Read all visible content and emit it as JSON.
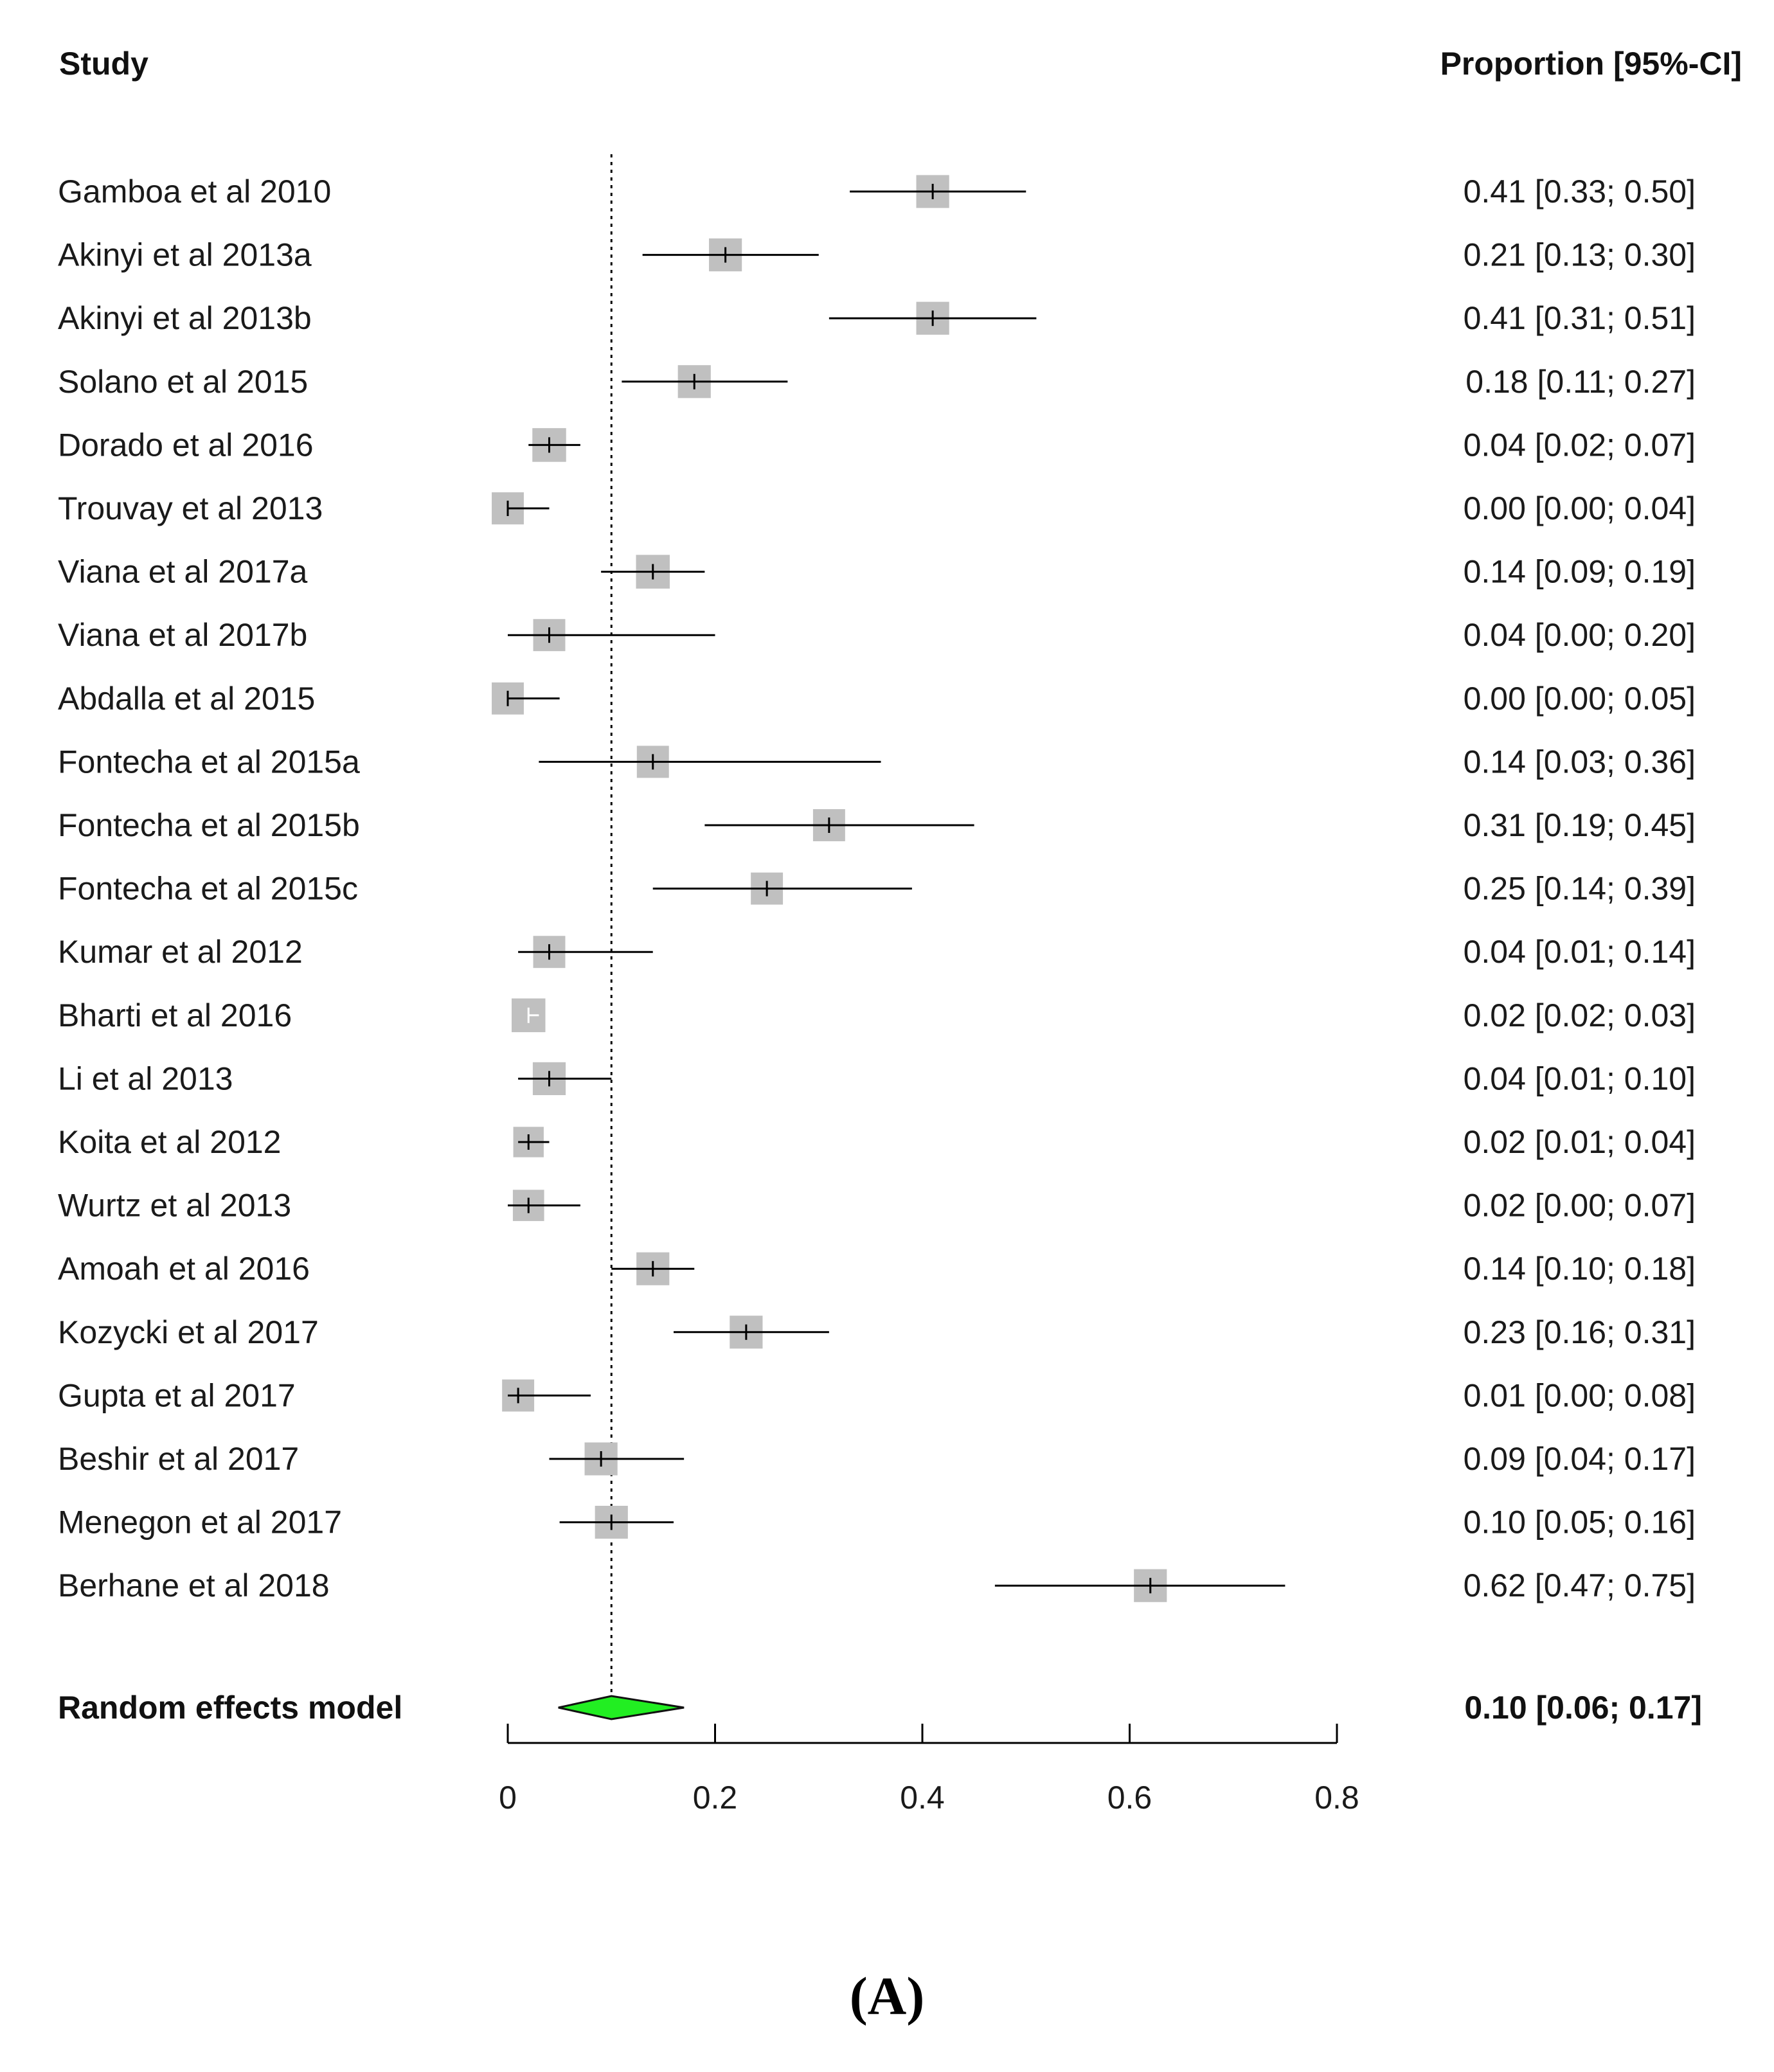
{
  "chart_data": {
    "type": "forest",
    "headers": {
      "study": "Study",
      "estimate": "Proportion [95%-CI]"
    },
    "studies": [
      {
        "name": "Gamboa et al 2010",
        "est": 0.41,
        "lo": 0.33,
        "hi": 0.5,
        "label": "0.41 [0.33; 0.50]",
        "weight": 0.8
      },
      {
        "name": "Akinyi et al 2013a",
        "est": 0.21,
        "lo": 0.13,
        "hi": 0.3,
        "label": "0.21 [0.13; 0.30]",
        "weight": 0.8
      },
      {
        "name": "Akinyi et al 2013b",
        "est": 0.41,
        "lo": 0.31,
        "hi": 0.51,
        "label": "0.41 [0.31; 0.51]",
        "weight": 0.8
      },
      {
        "name": "Solano et al 2015",
        "est": 0.18,
        "lo": 0.11,
        "hi": 0.27,
        "label": "0.18 [0.11; 0.27]",
        "weight": 0.8
      },
      {
        "name": "Dorado et al 2016",
        "est": 0.04,
        "lo": 0.02,
        "hi": 0.07,
        "label": "0.04 [0.02; 0.07]",
        "weight": 0.82
      },
      {
        "name": "Trouvay et al 2013",
        "est": 0.0,
        "lo": 0.0,
        "hi": 0.04,
        "label": "0.00 [0.00; 0.04]",
        "weight": 0.78
      },
      {
        "name": "Viana et al 2017a",
        "est": 0.14,
        "lo": 0.09,
        "hi": 0.19,
        "label": "0.14 [0.09; 0.19]",
        "weight": 0.82
      },
      {
        "name": "Viana et al 2017b",
        "est": 0.04,
        "lo": 0.0,
        "hi": 0.2,
        "label": "0.04 [0.00; 0.20]",
        "weight": 0.78
      },
      {
        "name": "Abdalla et al 2015",
        "est": 0.0,
        "lo": 0.0,
        "hi": 0.05,
        "label": "0.00 [0.00; 0.05]",
        "weight": 0.78
      },
      {
        "name": "Fontecha et al 2015a",
        "est": 0.14,
        "lo": 0.03,
        "hi": 0.36,
        "label": "0.14 [0.03; 0.36]",
        "weight": 0.78
      },
      {
        "name": "Fontecha et al 2015b",
        "est": 0.31,
        "lo": 0.19,
        "hi": 0.45,
        "label": "0.31 [0.19; 0.45]",
        "weight": 0.78
      },
      {
        "name": "Fontecha et al 2015c",
        "est": 0.25,
        "lo": 0.14,
        "hi": 0.39,
        "label": "0.25 [0.14; 0.39]",
        "weight": 0.78
      },
      {
        "name": "Kumar et al 2012",
        "est": 0.04,
        "lo": 0.01,
        "hi": 0.14,
        "label": "0.04 [0.01; 0.14]",
        "weight": 0.78
      },
      {
        "name": "Bharti et al 2016",
        "est": 0.02,
        "lo": 0.02,
        "hi": 0.03,
        "label": "0.02 [0.02; 0.03]",
        "weight": 0.82
      },
      {
        "name": "Li et al 2013",
        "est": 0.04,
        "lo": 0.01,
        "hi": 0.1,
        "label": "0.04 [0.01; 0.10]",
        "weight": 0.8
      },
      {
        "name": "Koita et al 2012",
        "est": 0.02,
        "lo": 0.01,
        "hi": 0.04,
        "label": "0.02 [0.01; 0.04]",
        "weight": 0.74
      },
      {
        "name": "Wurtz et al 2013",
        "est": 0.02,
        "lo": 0.0,
        "hi": 0.07,
        "label": "0.02 [0.00; 0.07]",
        "weight": 0.76
      },
      {
        "name": "Amoah et al 2016",
        "est": 0.14,
        "lo": 0.1,
        "hi": 0.18,
        "label": "0.14 [0.10; 0.18]",
        "weight": 0.8
      },
      {
        "name": "Kozycki et al 2017",
        "est": 0.23,
        "lo": 0.16,
        "hi": 0.31,
        "label": "0.23 [0.16; 0.31]",
        "weight": 0.8
      },
      {
        "name": "Gupta et al 2017",
        "est": 0.01,
        "lo": 0.0,
        "hi": 0.08,
        "label": "0.01 [0.00; 0.08]",
        "weight": 0.78
      },
      {
        "name": "Beshir et al 2017",
        "est": 0.09,
        "lo": 0.04,
        "hi": 0.17,
        "label": "0.09 [0.04; 0.17]",
        "weight": 0.8
      },
      {
        "name": "Menegon et al 2017",
        "est": 0.1,
        "lo": 0.05,
        "hi": 0.16,
        "label": "0.10 [0.05; 0.16]",
        "weight": 0.8
      },
      {
        "name": "Berhane et al 2018",
        "est": 0.62,
        "lo": 0.47,
        "hi": 0.75,
        "label": "0.62 [0.47; 0.75]",
        "weight": 0.8
      }
    ],
    "pooled": {
      "name": "Random effects model",
      "est": 0.1,
      "lo": 0.06,
      "hi": 0.17,
      "label": "0.10 [0.06; 0.17]"
    },
    "reference_line": 0.1,
    "xlim": [
      0,
      0.8
    ],
    "ticks": [
      {
        "value": 0,
        "label": "0"
      },
      {
        "value": 0.2,
        "label": "0.2"
      },
      {
        "value": 0.4,
        "label": "0.4"
      },
      {
        "value": 0.6,
        "label": "0.6"
      },
      {
        "value": 0.8,
        "label": "0.8"
      }
    ],
    "colors": {
      "square": "#c0c0c0",
      "line": "#000000",
      "diamond_fill": "#22ee22",
      "diamond_stroke": "#111111"
    }
  },
  "panel_label": "(A)"
}
